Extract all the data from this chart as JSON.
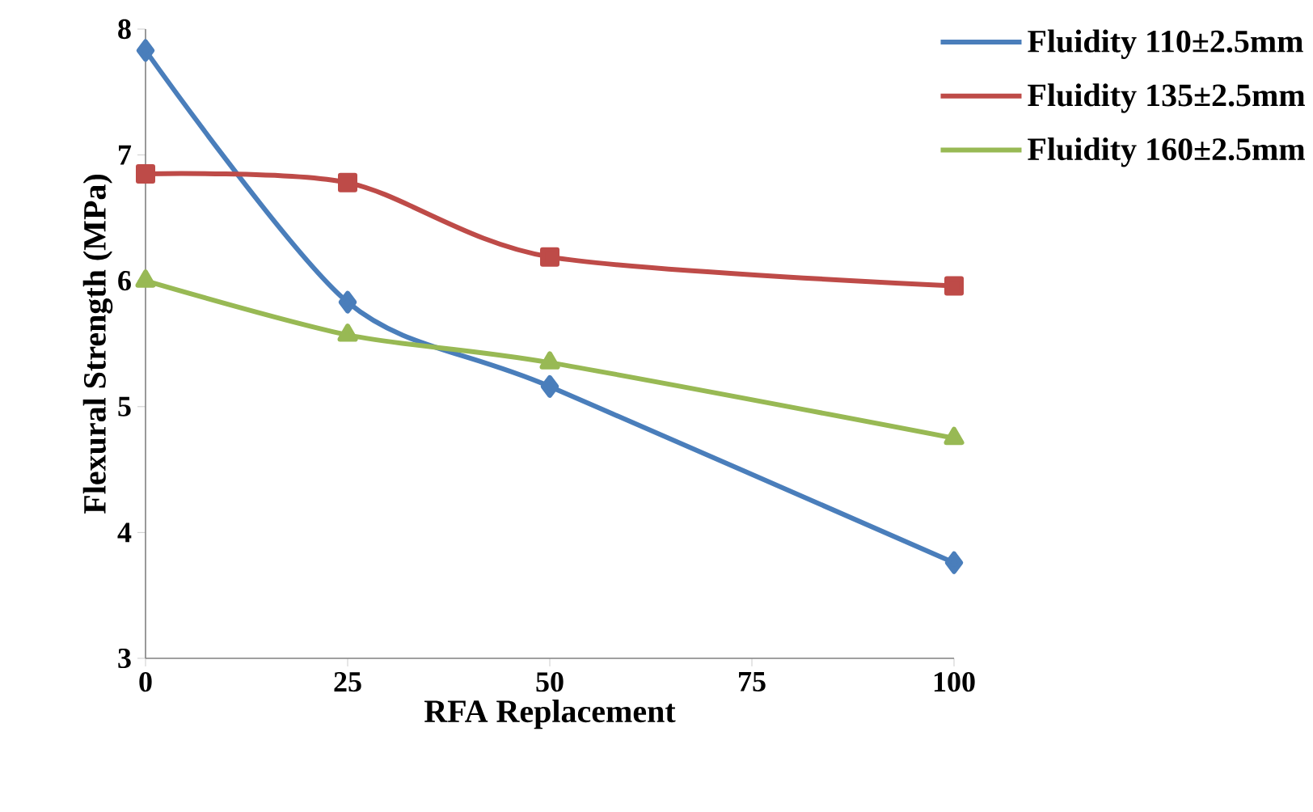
{
  "chart_data": {
    "type": "line",
    "xlabel": "RFA  Replacement",
    "ylabel": "Flexural Strength (MPa)",
    "xlim": [
      0,
      100
    ],
    "xticks": [
      0,
      25,
      50,
      75,
      100
    ],
    "ylim": [
      3,
      8
    ],
    "yticks": [
      3,
      4,
      5,
      6,
      7,
      8
    ],
    "x": [
      0,
      25,
      50,
      100
    ],
    "legend": "top right",
    "grid": false,
    "series": [
      {
        "name": "Fluidity 110±2.5mm",
        "color": "#4a7ebb",
        "marker": "diamond",
        "values": [
          7.83,
          5.83,
          5.16,
          3.76
        ]
      },
      {
        "name": "Fluidity 135±2.5mm",
        "color": "#be4b48",
        "marker": "square",
        "values": [
          6.85,
          6.78,
          6.19,
          5.96
        ]
      },
      {
        "name": "Fluidity 160±2.5mm",
        "color": "#98b954",
        "marker": "triangle",
        "values": [
          6.0,
          5.57,
          5.35,
          4.75
        ]
      }
    ]
  }
}
